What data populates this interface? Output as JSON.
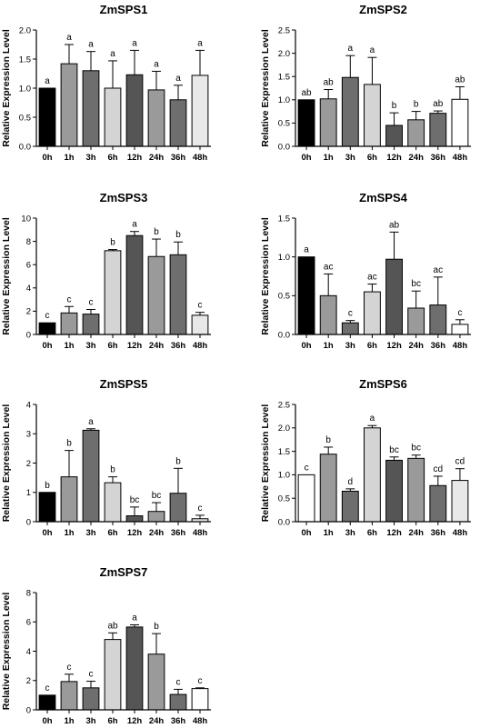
{
  "chart_data": [
    {
      "type": "bar",
      "title": "ZmSPS1",
      "ylabel": "Relative Expression Level",
      "categories": [
        "0h",
        "1h",
        "3h",
        "6h",
        "12h",
        "24h",
        "36h",
        "48h"
      ],
      "values": [
        1.0,
        1.42,
        1.3,
        1.0,
        1.23,
        0.97,
        0.8,
        1.22
      ],
      "errors": [
        0.0,
        0.33,
        0.33,
        0.47,
        0.42,
        0.32,
        0.25,
        0.43
      ],
      "significance": [
        "a",
        "a",
        "a",
        "a",
        "a",
        "a",
        "a",
        "a"
      ],
      "ylim": [
        0,
        2.0
      ],
      "yticks": [
        "0.0",
        "0.5",
        "1.0",
        "1.5",
        "2.0"
      ],
      "colors": [
        "#000000",
        "#9a9a9a",
        "#6e6e6e",
        "#d4d4d4",
        "#555555",
        "#9a9a9a",
        "#6e6e6e",
        "#e8e8e8"
      ]
    },
    {
      "type": "bar",
      "title": "ZmSPS2",
      "ylabel": "Relative Expression Level",
      "categories": [
        "0h",
        "1h",
        "3h",
        "6h",
        "12h",
        "24h",
        "36h",
        "48h"
      ],
      "values": [
        1.0,
        1.02,
        1.48,
        1.33,
        0.45,
        0.57,
        0.71,
        1.01
      ],
      "errors": [
        0.0,
        0.2,
        0.47,
        0.58,
        0.27,
        0.18,
        0.05,
        0.27
      ],
      "significance": [
        "ab",
        "ab",
        "a",
        "a",
        "b",
        "b",
        "ab",
        "ab"
      ],
      "ylim": [
        0,
        2.5
      ],
      "yticks": [
        "0.0",
        "0.5",
        "1.0",
        "1.5",
        "2.0",
        "2.5"
      ],
      "colors": [
        "#000000",
        "#9a9a9a",
        "#6e6e6e",
        "#d4d4d4",
        "#555555",
        "#9a9a9a",
        "#6e6e6e",
        "#ffffff"
      ]
    },
    {
      "type": "bar",
      "title": "ZmSPS3",
      "ylabel": "Relative Expression Level",
      "categories": [
        "0h",
        "1h",
        "3h",
        "6h",
        "12h",
        "24h",
        "36h",
        "48h"
      ],
      "values": [
        1.0,
        1.85,
        1.75,
        7.2,
        8.5,
        6.7,
        6.85,
        1.65
      ],
      "errors": [
        0.0,
        0.55,
        0.4,
        0.1,
        0.35,
        1.5,
        1.1,
        0.25
      ],
      "significance": [
        "c",
        "c",
        "c",
        "b",
        "a",
        "b",
        "b",
        "c"
      ],
      "ylim": [
        0,
        10
      ],
      "yticks": [
        "0",
        "2",
        "4",
        "6",
        "8",
        "10"
      ],
      "colors": [
        "#000000",
        "#9a9a9a",
        "#6e6e6e",
        "#d4d4d4",
        "#555555",
        "#9a9a9a",
        "#6e6e6e",
        "#e8e8e8"
      ]
    },
    {
      "type": "bar",
      "title": "ZmSPS4",
      "ylabel": "Relative Expression Level",
      "categories": [
        "0h",
        "1h",
        "3h",
        "6h",
        "12h",
        "24h",
        "36h",
        "48h"
      ],
      "values": [
        1.0,
        0.5,
        0.15,
        0.55,
        0.97,
        0.34,
        0.38,
        0.13
      ],
      "errors": [
        0.0,
        0.28,
        0.03,
        0.1,
        0.35,
        0.22,
        0.36,
        0.06
      ],
      "significance": [
        "a",
        "ac",
        "c",
        "ac",
        "ab",
        "bc",
        "ac",
        "c"
      ],
      "ylim": [
        0,
        1.5
      ],
      "yticks": [
        "0.0",
        "0.5",
        "1.0",
        "1.5"
      ],
      "colors": [
        "#000000",
        "#9a9a9a",
        "#6e6e6e",
        "#d4d4d4",
        "#555555",
        "#9a9a9a",
        "#6e6e6e",
        "#ffffff"
      ]
    },
    {
      "type": "bar",
      "title": "ZmSPS5",
      "ylabel": "Relative Expression Level",
      "categories": [
        "0h",
        "1h",
        "3h",
        "6h",
        "12h",
        "24h",
        "36h",
        "48h"
      ],
      "values": [
        1.0,
        1.53,
        3.12,
        1.33,
        0.2,
        0.35,
        0.97,
        0.1
      ],
      "errors": [
        0.0,
        0.9,
        0.05,
        0.2,
        0.3,
        0.3,
        0.85,
        0.12
      ],
      "significance": [
        "b",
        "b",
        "a",
        "b",
        "bc",
        "bc",
        "b",
        "c"
      ],
      "ylim": [
        0,
        4
      ],
      "yticks": [
        "0",
        "1",
        "2",
        "3",
        "4"
      ],
      "colors": [
        "#000000",
        "#9a9a9a",
        "#6e6e6e",
        "#d4d4d4",
        "#555555",
        "#9a9a9a",
        "#6e6e6e",
        "#e8e8e8"
      ]
    },
    {
      "type": "bar",
      "title": "ZmSPS6",
      "ylabel": "Relative Expression Level",
      "categories": [
        "0h",
        "1h",
        "3h",
        "6h",
        "12h",
        "24h",
        "36h",
        "48h"
      ],
      "values": [
        1.0,
        1.44,
        0.65,
        2.0,
        1.31,
        1.35,
        0.77,
        0.88
      ],
      "errors": [
        0.0,
        0.15,
        0.05,
        0.05,
        0.07,
        0.07,
        0.2,
        0.25
      ],
      "significance": [
        "c",
        "b",
        "d",
        "a",
        "bc",
        "bc",
        "cd",
        "cd"
      ],
      "ylim": [
        0,
        2.5
      ],
      "yticks": [
        "0.0",
        "0.5",
        "1.0",
        "1.5",
        "2.0",
        "2.5"
      ],
      "colors": [
        "#ffffff",
        "#9a9a9a",
        "#6e6e6e",
        "#d4d4d4",
        "#555555",
        "#9a9a9a",
        "#6e6e6e",
        "#e8e8e8"
      ]
    },
    {
      "type": "bar",
      "title": "ZmSPS7",
      "ylabel": "Relative Expression Level",
      "categories": [
        "0h",
        "1h",
        "3h",
        "6h",
        "12h",
        "24h",
        "36h",
        "48h"
      ],
      "values": [
        1.0,
        1.93,
        1.5,
        4.8,
        5.65,
        3.8,
        1.05,
        1.45
      ],
      "errors": [
        0.0,
        0.5,
        0.45,
        0.45,
        0.15,
        1.4,
        0.35,
        0.05
      ],
      "significance": [
        "c",
        "c",
        "c",
        "ab",
        "a",
        "b",
        "c",
        "c"
      ],
      "ylim": [
        0,
        8
      ],
      "yticks": [
        "0",
        "2",
        "4",
        "6",
        "8"
      ],
      "colors": [
        "#000000",
        "#9a9a9a",
        "#6e6e6e",
        "#d4d4d4",
        "#555555",
        "#9a9a9a",
        "#6e6e6e",
        "#ffffff"
      ]
    }
  ]
}
